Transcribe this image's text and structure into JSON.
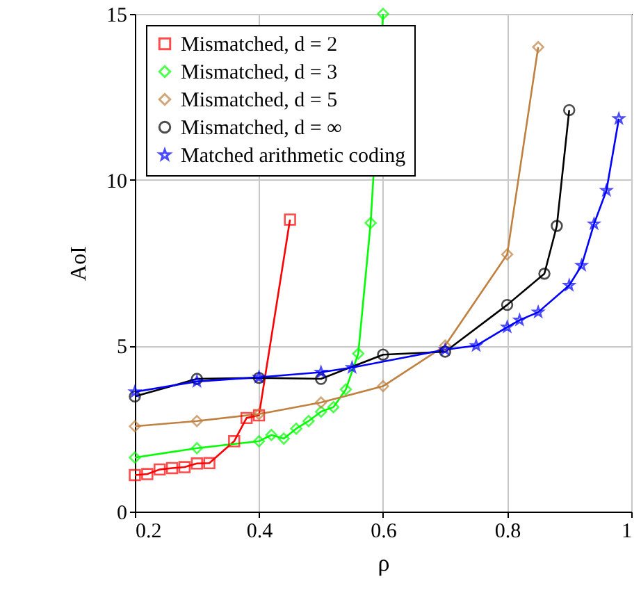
{
  "chart_data": {
    "type": "line",
    "xlabel": "ρ",
    "ylabel": "AoI",
    "xlim": [
      0.2,
      1
    ],
    "ylim": [
      0,
      15
    ],
    "xticks": [
      0.2,
      0.4,
      0.6,
      0.8,
      1
    ],
    "yticks": [
      0,
      5,
      10,
      15
    ],
    "grid": true,
    "legend": "top left",
    "line_style": "solid",
    "series": [
      {
        "name": "Mismatched, d = 2",
        "color": "#ff0000",
        "marker": "square",
        "x": [
          0.2,
          0.22,
          0.24,
          0.26,
          0.28,
          0.3,
          0.32,
          0.36,
          0.38,
          0.4,
          0.45
        ],
        "values": [
          1.1,
          1.13,
          1.27,
          1.31,
          1.34,
          1.45,
          1.46,
          2.12,
          2.82,
          2.9,
          8.8
        ]
      },
      {
        "name": "Mismatched, d = 3",
        "color": "#00ff00",
        "marker": "diamond",
        "x": [
          0.2,
          0.3,
          0.4,
          0.42,
          0.44,
          0.46,
          0.48,
          0.5,
          0.52,
          0.54,
          0.56,
          0.58,
          0.6
        ],
        "values": [
          1.63,
          1.91,
          2.12,
          2.31,
          2.2,
          2.5,
          2.73,
          3.01,
          3.15,
          3.68,
          4.76,
          8.7,
          15
        ]
      },
      {
        "name": "Mismatched, d = 5",
        "color": "#bf8040",
        "marker": "diamond",
        "x": [
          0.2,
          0.3,
          0.4,
          0.5,
          0.6,
          0.7,
          0.8,
          0.85
        ],
        "values": [
          2.57,
          2.73,
          2.94,
          3.29,
          3.78,
          5.0,
          7.75,
          14
        ]
      },
      {
        "name": "Mismatched, d = ∞",
        "color": "#000000",
        "marker": "circle",
        "x": [
          0.2,
          0.3,
          0.4,
          0.5,
          0.6,
          0.7,
          0.8,
          0.86,
          0.88,
          0.9
        ],
        "values": [
          3.47,
          4.0,
          4.03,
          4.0,
          4.73,
          4.82,
          6.23,
          7.17,
          8.61,
          12.1
        ]
      },
      {
        "name": "Matched arithmetic coding",
        "color": "#0000ff",
        "marker": "star",
        "x": [
          0.2,
          0.3,
          0.4,
          0.5,
          0.55,
          0.7,
          0.75,
          0.8,
          0.82,
          0.85,
          0.9,
          0.92,
          0.94,
          0.96,
          0.98
        ],
        "values": [
          3.61,
          3.92,
          4.05,
          4.2,
          4.34,
          4.88,
          5.0,
          5.56,
          5.77,
          6.01,
          6.82,
          7.42,
          8.67,
          9.68,
          11.84
        ]
      }
    ]
  }
}
